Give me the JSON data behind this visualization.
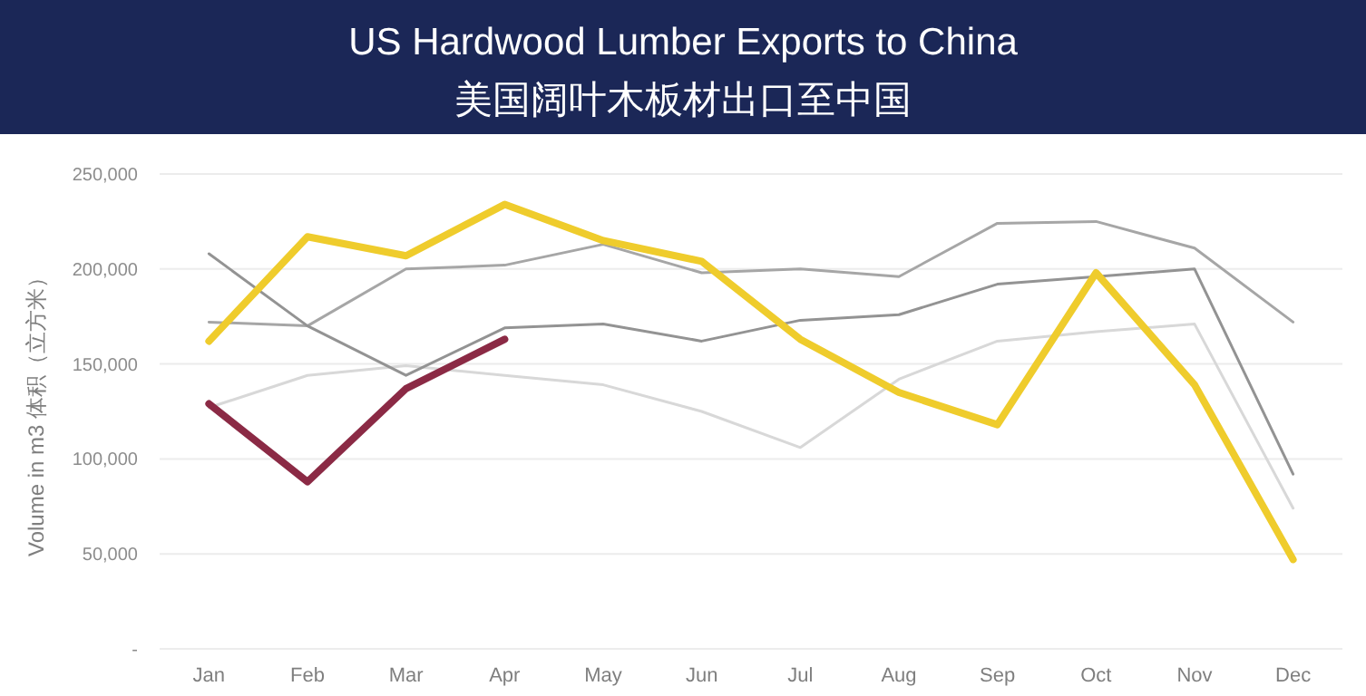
{
  "chart_data": {
    "type": "line",
    "title": "US Hardwood Lumber Exports to China",
    "subtitle": "美国阔叶木板材出口至中国",
    "ylabel": "Volume in m3 体积（立方米）",
    "categories": [
      "Jan",
      "Feb",
      "Mar",
      "Apr",
      "May",
      "Jun",
      "Jul",
      "Aug",
      "Sep",
      "Oct",
      "Nov",
      "Dec"
    ],
    "ylim": [
      0,
      250000
    ],
    "yticks": [
      {
        "value": 0,
        "label": "-"
      },
      {
        "value": 50000,
        "label": "50,000"
      },
      {
        "value": 100000,
        "label": "100,000"
      },
      {
        "value": 150000,
        "label": "150,000"
      },
      {
        "value": 200000,
        "label": "200,000"
      },
      {
        "value": 250000,
        "label": "250,000"
      }
    ],
    "grid": "y",
    "series": [
      {
        "color": "#d8d8d8",
        "values": [
          127000,
          144000,
          149000,
          144000,
          139000,
          125000,
          106000,
          142000,
          162000,
          167000,
          171000,
          74000
        ]
      },
      {
        "color": "#a6a6a6",
        "values": [
          172000,
          170000,
          200000,
          202000,
          213000,
          198000,
          200000,
          196000,
          224000,
          225000,
          211000,
          172000
        ]
      },
      {
        "color": "#939393",
        "values": [
          208000,
          170000,
          144000,
          169000,
          171000,
          162000,
          173000,
          176000,
          192000,
          196000,
          200000,
          92000
        ]
      },
      {
        "color": "#8b2a45",
        "values": [
          129000,
          88000,
          137000,
          163000,
          null,
          null,
          null,
          null,
          null,
          null,
          null,
          null
        ]
      },
      {
        "color": "#efcc2c",
        "values": [
          162000,
          217000,
          207000,
          234000,
          215000,
          204000,
          163000,
          135000,
          118000,
          198000,
          139000,
          47000
        ]
      }
    ]
  }
}
